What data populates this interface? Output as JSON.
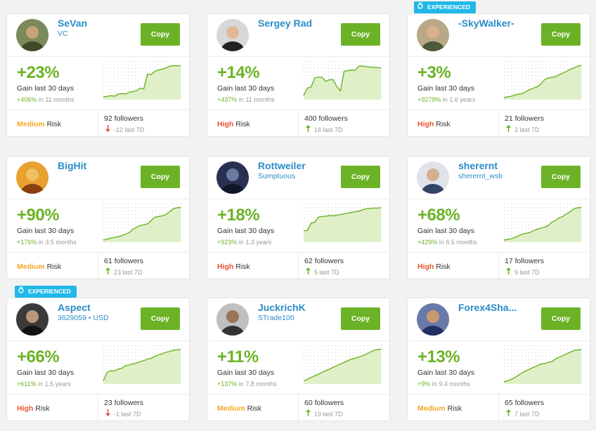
{
  "colors": {
    "accent_green": "#6cb226",
    "link_blue": "#2a8dc8",
    "medium_risk": "#f5a623",
    "high_risk": "#e8542b",
    "badge": "#1fb8e8",
    "arrow_up": "#6cb226",
    "arrow_down": "#d9534f"
  },
  "common": {
    "copy_label": "Copy",
    "gain_label": "Gain last 30 days",
    "risk_word": "Risk",
    "badge_label": "EXPERIENCED",
    "followers_word": "followers",
    "last_word": "last 7D",
    "in_word": "in"
  },
  "traders": [
    {
      "name": "SeVan",
      "subtitle": "VC",
      "gain": "+23%",
      "total": "+406%",
      "period": "11 months",
      "risk": "Medium",
      "followers": "92",
      "weekly": "-12",
      "trend": "down",
      "experienced": false,
      "series": [
        0.05,
        0.05,
        0.08,
        0.06,
        0.12,
        0.14,
        0.13,
        0.18,
        0.2,
        0.22,
        0.3,
        0.28,
        0.72,
        0.7,
        0.8,
        0.84,
        0.86,
        0.9,
        0.95,
        0.97,
        0.96,
        0.97
      ]
    },
    {
      "name": "Sergey Rad",
      "subtitle": "",
      "gain": "+14%",
      "total": "+437%",
      "period": "11 months",
      "risk": "High",
      "followers": "400",
      "weekly": "16",
      "trend": "up",
      "experienced": false,
      "series": [
        0.08,
        0.3,
        0.33,
        0.6,
        0.63,
        0.62,
        0.5,
        0.55,
        0.55,
        0.35,
        0.22,
        0.8,
        0.82,
        0.84,
        0.83,
        0.95,
        0.96,
        0.94,
        0.93,
        0.92,
        0.91,
        0.9
      ]
    },
    {
      "name": "-SkyWalker-",
      "subtitle": "",
      "gain": "+3%",
      "total": "+9279%",
      "period": "1.6 years",
      "risk": "High",
      "followers": "21",
      "weekly": "2",
      "trend": "up",
      "experienced": true,
      "series": [
        0.02,
        0.04,
        0.06,
        0.1,
        0.12,
        0.14,
        0.2,
        0.26,
        0.3,
        0.34,
        0.42,
        0.55,
        0.6,
        0.62,
        0.64,
        0.7,
        0.75,
        0.8,
        0.86,
        0.9,
        0.95,
        0.98
      ]
    },
    {
      "name": "BigHit",
      "subtitle": "",
      "gain": "+90%",
      "total": "+176%",
      "period": "3.5 months",
      "risk": "Medium",
      "followers": "61",
      "weekly": "23",
      "trend": "up",
      "experienced": false,
      "series": [
        0.02,
        0.05,
        0.08,
        0.1,
        0.12,
        0.15,
        0.2,
        0.24,
        0.34,
        0.4,
        0.45,
        0.48,
        0.5,
        0.6,
        0.7,
        0.72,
        0.74,
        0.78,
        0.86,
        0.95,
        0.98,
        0.99
      ]
    },
    {
      "name": "Rottweiler",
      "subtitle": "Sumptuous",
      "gain": "+18%",
      "total": "+923%",
      "period": "1.3 years",
      "risk": "High",
      "followers": "62",
      "weekly": "5",
      "trend": "up",
      "experienced": false,
      "series": [
        0.3,
        0.3,
        0.52,
        0.55,
        0.7,
        0.72,
        0.73,
        0.75,
        0.74,
        0.76,
        0.78,
        0.8,
        0.82,
        0.84,
        0.86,
        0.88,
        0.92,
        0.95,
        0.96,
        0.97,
        0.97,
        0.98
      ]
    },
    {
      "name": "sherernt",
      "subtitle": "sherernt_wsb",
      "gain": "+68%",
      "total": "+429%",
      "period": "6.5 months",
      "risk": "High",
      "followers": "17",
      "weekly": "9",
      "trend": "up",
      "experienced": false,
      "series": [
        0.02,
        0.04,
        0.06,
        0.1,
        0.15,
        0.2,
        0.22,
        0.24,
        0.3,
        0.34,
        0.38,
        0.4,
        0.45,
        0.55,
        0.6,
        0.68,
        0.72,
        0.8,
        0.86,
        0.95,
        0.98,
        0.99
      ]
    },
    {
      "name": "Aspect",
      "subtitle": "3629059 • USD",
      "gain": "+66%",
      "total": "+611%",
      "period": "1.5 years",
      "risk": "High",
      "followers": "23",
      "weekly": "-1",
      "trend": "down",
      "experienced": true,
      "series": [
        0.05,
        0.3,
        0.35,
        0.34,
        0.4,
        0.42,
        0.5,
        0.52,
        0.55,
        0.58,
        0.62,
        0.65,
        0.7,
        0.72,
        0.78,
        0.82,
        0.85,
        0.9,
        0.92,
        0.96,
        0.97,
        0.98
      ]
    },
    {
      "name": "JuckrichK",
      "subtitle": "STrade100",
      "gain": "+11%",
      "total": "+137%",
      "period": "7.8 months",
      "risk": "Medium",
      "followers": "60",
      "weekly": "19",
      "trend": "up",
      "experienced": false,
      "series": [
        0.05,
        0.1,
        0.15,
        0.2,
        0.25,
        0.3,
        0.35,
        0.4,
        0.45,
        0.5,
        0.55,
        0.6,
        0.65,
        0.7,
        0.72,
        0.76,
        0.8,
        0.84,
        0.9,
        0.95,
        0.98,
        0.99
      ]
    },
    {
      "name": "Forex4Sha...",
      "subtitle": "",
      "gain": "+13%",
      "total": "+9%",
      "period": "9.4 months",
      "risk": "Medium",
      "followers": "65",
      "weekly": "7",
      "trend": "up",
      "experienced": false,
      "series": [
        0.02,
        0.05,
        0.1,
        0.15,
        0.22,
        0.3,
        0.35,
        0.4,
        0.45,
        0.5,
        0.55,
        0.56,
        0.6,
        0.62,
        0.7,
        0.75,
        0.8,
        0.85,
        0.9,
        0.95,
        0.97,
        0.98
      ]
    }
  ]
}
